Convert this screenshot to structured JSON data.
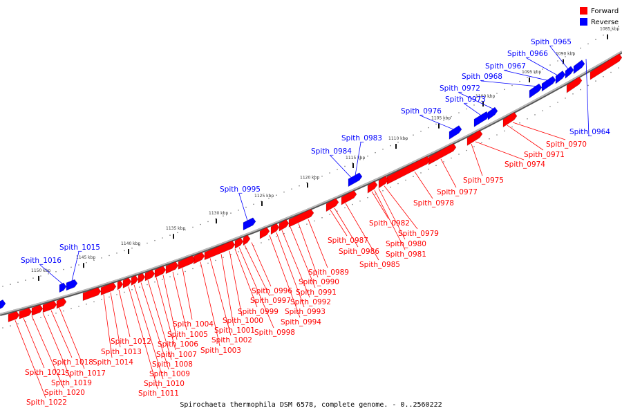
{
  "caption": "Spirochaeta thermophila DSM 6578, complete genome. - 0..2560222",
  "legend": [
    {
      "label": "Forward",
      "color": "#ff0000"
    },
    {
      "label": "Reverse",
      "color": "#0000ff"
    }
  ],
  "colors": {
    "forward": "#ff0000",
    "reverse": "#0000ff",
    "backbone": "#888888"
  },
  "tick_labels": [
    "1085 kbp",
    "1090 kbp",
    "1095 kbp",
    "1100 kbp",
    "1105 kbp",
    "1110 kbp",
    "1115 kbp",
    "1120 kbp",
    "1125 kbp",
    "1130 kbp",
    "1135 kbp",
    "1140 kbp",
    "1145 kbp",
    "1150 kbp"
  ],
  "genes": [
    {
      "name": "Spith_0964",
      "strand": "reverse"
    },
    {
      "name": "Spith_0965",
      "strand": "reverse"
    },
    {
      "name": "Spith_0966",
      "strand": "reverse"
    },
    {
      "name": "Spith_0967",
      "strand": "reverse"
    },
    {
      "name": "Spith_0968",
      "strand": "reverse"
    },
    {
      "name": "Spith_0970",
      "strand": "forward"
    },
    {
      "name": "Spith_0971",
      "strand": "forward"
    },
    {
      "name": "Spith_0972",
      "strand": "reverse"
    },
    {
      "name": "Spith_0973",
      "strand": "reverse"
    },
    {
      "name": "Spith_0974",
      "strand": "forward"
    },
    {
      "name": "Spith_0975",
      "strand": "forward"
    },
    {
      "name": "Spith_0976",
      "strand": "reverse"
    },
    {
      "name": "Spith_0977",
      "strand": "forward"
    },
    {
      "name": "Spith_0978",
      "strand": "forward"
    },
    {
      "name": "Spith_0979",
      "strand": "forward"
    },
    {
      "name": "Spith_0980",
      "strand": "forward"
    },
    {
      "name": "Spith_0981",
      "strand": "forward"
    },
    {
      "name": "Spith_0982",
      "strand": "forward"
    },
    {
      "name": "Spith_0983",
      "strand": "reverse"
    },
    {
      "name": "Spith_0984",
      "strand": "reverse"
    },
    {
      "name": "Spith_0985",
      "strand": "forward"
    },
    {
      "name": "Spith_0986",
      "strand": "forward"
    },
    {
      "name": "Spith_0987",
      "strand": "forward"
    },
    {
      "name": "Spith_0989",
      "strand": "forward"
    },
    {
      "name": "Spith_0990",
      "strand": "forward"
    },
    {
      "name": "Spith_0991",
      "strand": "forward"
    },
    {
      "name": "Spith_0992",
      "strand": "forward"
    },
    {
      "name": "Spith_0993",
      "strand": "forward"
    },
    {
      "name": "Spith_0994",
      "strand": "forward"
    },
    {
      "name": "Spith_0995",
      "strand": "reverse"
    },
    {
      "name": "Spith_0996",
      "strand": "forward"
    },
    {
      "name": "Spith_0997",
      "strand": "forward"
    },
    {
      "name": "Spith_0998",
      "strand": "forward"
    },
    {
      "name": "Spith_0999",
      "strand": "forward"
    },
    {
      "name": "Spith_1000",
      "strand": "forward"
    },
    {
      "name": "Spith_1001",
      "strand": "forward"
    },
    {
      "name": "Spith_1002",
      "strand": "forward"
    },
    {
      "name": "Spith_1003",
      "strand": "forward"
    },
    {
      "name": "Spith_1004",
      "strand": "forward"
    },
    {
      "name": "Spith_1005",
      "strand": "forward"
    },
    {
      "name": "Spith_1006",
      "strand": "forward"
    },
    {
      "name": "Spith_1007",
      "strand": "forward"
    },
    {
      "name": "Spith_1008",
      "strand": "forward"
    },
    {
      "name": "Spith_1009",
      "strand": "forward"
    },
    {
      "name": "Spith_1010",
      "strand": "forward"
    },
    {
      "name": "Spith_1011",
      "strand": "forward"
    },
    {
      "name": "Spith_1012",
      "strand": "forward"
    },
    {
      "name": "Spith_1013",
      "strand": "forward"
    },
    {
      "name": "Spith_1014",
      "strand": "forward"
    },
    {
      "name": "Spith_1015",
      "strand": "reverse"
    },
    {
      "name": "Spith_1016",
      "strand": "reverse"
    },
    {
      "name": "Spith_1017",
      "strand": "forward"
    },
    {
      "name": "Spith_1018",
      "strand": "forward"
    },
    {
      "name": "Spith_1019",
      "strand": "forward"
    },
    {
      "name": "Spith_1020",
      "strand": "forward"
    },
    {
      "name": "Spith_1021",
      "strand": "forward"
    },
    {
      "name": "Spith_1022",
      "strand": "forward"
    }
  ]
}
